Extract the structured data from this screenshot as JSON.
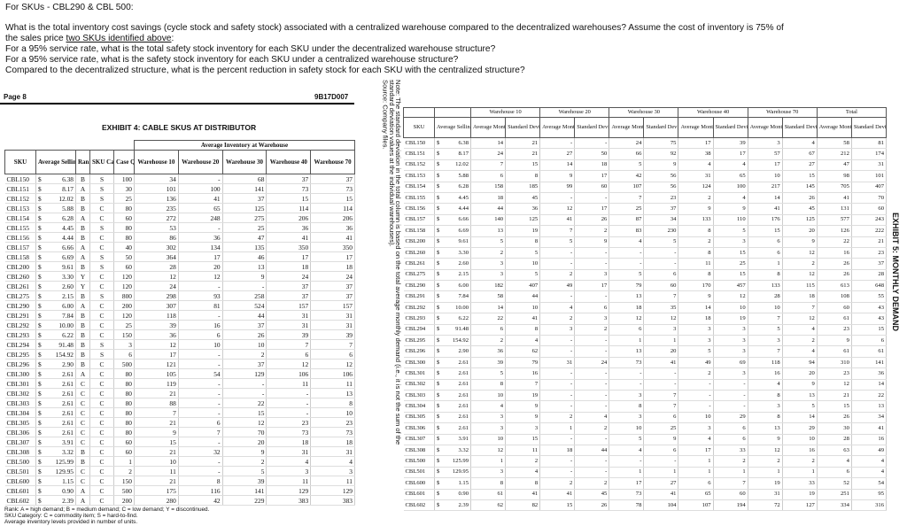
{
  "question": {
    "heading": "For SKUs - CBL290 & CBL 500:",
    "line1": "What is the total inventory cost savings (cycle stock and safety stock) associated with a centralized warehouse compared to the decentralized warehouses? Assume the cost of inventory is 75% of",
    "line2_pre": "the sales price ",
    "line2_u": "two SKUs identified above",
    "line2_post": ":",
    "line3": "For a 95% service rate, what is the total safety stock inventory for each SKU under the decentralized warehouse structure?",
    "line4": "For a 95% service rate, what is the safety stock inventory for each SKU under a centralized warehouse structure?",
    "line5": "Compared to the decentralized structure, what is the percent reduction in safety stock for each SKU with the centralized structure?"
  },
  "page": {
    "label": "Page 8",
    "code": "9B17D007"
  },
  "exhibit4": {
    "title": "EXHIBIT 4: CABLE SKUS AT DISTRIBUTOR",
    "group_header": "Average Inventory at Warehouse",
    "headers": [
      "SKU",
      "Average Selling Price",
      "Rank",
      "SKU Category",
      "Case Quantity",
      "Warehouse 10",
      "Warehouse 20",
      "Warehouse 30",
      "Warehouse 40",
      "Warehouse 70"
    ],
    "rows": [
      [
        "CBL150",
        "6.38",
        "B",
        "S",
        "100",
        "34",
        "-",
        "68",
        "37",
        "37"
      ],
      [
        "CBL151",
        "8.17",
        "A",
        "S",
        "30",
        "101",
        "100",
        "141",
        "73",
        "73"
      ],
      [
        "CBL152",
        "12.02",
        "B",
        "S",
        "25",
        "136",
        "41",
        "37",
        "15",
        "15"
      ],
      [
        "CBL153",
        "5.88",
        "B",
        "C",
        "80",
        "235",
        "65",
        "125",
        "114",
        "114"
      ],
      [
        "CBL154",
        "6.28",
        "A",
        "C",
        "60",
        "272",
        "248",
        "275",
        "206",
        "206"
      ],
      [
        "CBL155",
        "4.45",
        "B",
        "S",
        "80",
        "53",
        "-",
        "25",
        "36",
        "36"
      ],
      [
        "CBL156",
        "4.44",
        "B",
        "C",
        "80",
        "86",
        "36",
        "47",
        "41",
        "41"
      ],
      [
        "CBL157",
        "6.66",
        "A",
        "C",
        "40",
        "302",
        "134",
        "135",
        "350",
        "350"
      ],
      [
        "CBL158",
        "6.69",
        "A",
        "S",
        "50",
        "364",
        "17",
        "46",
        "17",
        "17"
      ],
      [
        "CBL200",
        "9.61",
        "B",
        "S",
        "60",
        "28",
        "20",
        "13",
        "18",
        "18"
      ],
      [
        "CBL260",
        "3.30",
        "Y",
        "C",
        "120",
        "12",
        "12",
        "9",
        "24",
        "24"
      ],
      [
        "CBL261",
        "2.60",
        "Y",
        "C",
        "120",
        "24",
        "-",
        "-",
        "37",
        "37"
      ],
      [
        "CBL275",
        "2.15",
        "B",
        "S",
        "800",
        "298",
        "93",
        "258",
        "37",
        "37"
      ],
      [
        "CBL290",
        "6.00",
        "A",
        "C",
        "200",
        "307",
        "81",
        "524",
        "157",
        "157"
      ],
      [
        "CBL291",
        "7.84",
        "B",
        "C",
        "120",
        "118",
        "-",
        "44",
        "31",
        "31"
      ],
      [
        "CBL292",
        "10.00",
        "B",
        "C",
        "25",
        "39",
        "16",
        "37",
        "31",
        "31"
      ],
      [
        "CBL293",
        "6.22",
        "B",
        "C",
        "150",
        "36",
        "6",
        "26",
        "39",
        "39"
      ],
      [
        "CBL294",
        "91.48",
        "B",
        "S",
        "3",
        "12",
        "10",
        "10",
        "7",
        "7"
      ],
      [
        "CBL295",
        "154.92",
        "B",
        "S",
        "6",
        "17",
        "-",
        "2",
        "6",
        "6"
      ],
      [
        "CBL296",
        "2.90",
        "B",
        "C",
        "500",
        "121",
        "-",
        "37",
        "12",
        "12"
      ],
      [
        "CBL300",
        "2.61",
        "A",
        "C",
        "80",
        "105",
        "54",
        "129",
        "106",
        "106"
      ],
      [
        "CBL301",
        "2.61",
        "C",
        "C",
        "80",
        "119",
        "-",
        "-",
        "11",
        "11"
      ],
      [
        "CBL302",
        "2.61",
        "C",
        "C",
        "80",
        "21",
        "-",
        "-",
        "-",
        "13"
      ],
      [
        "CBL303",
        "2.61",
        "C",
        "C",
        "80",
        "88",
        "-",
        "22",
        "-",
        "8"
      ],
      [
        "CBL304",
        "2.61",
        "C",
        "C",
        "80",
        "7",
        "-",
        "15",
        "-",
        "10"
      ],
      [
        "CBL305",
        "2.61",
        "C",
        "C",
        "80",
        "21",
        "6",
        "12",
        "23",
        "23"
      ],
      [
        "CBL306",
        "2.61",
        "C",
        "C",
        "80",
        "9",
        "7",
        "70",
        "73",
        "73"
      ],
      [
        "CBL307",
        "3.91",
        "C",
        "C",
        "60",
        "15",
        "-",
        "20",
        "18",
        "18"
      ],
      [
        "CBL308",
        "3.32",
        "B",
        "C",
        "60",
        "21",
        "32",
        "9",
        "31",
        "31"
      ],
      [
        "CBL500",
        "125.99",
        "B",
        "C",
        "1",
        "10",
        "-",
        "2",
        "4",
        "4"
      ],
      [
        "CBL501",
        "129.95",
        "C",
        "C",
        "2",
        "11",
        "-",
        "5",
        "3",
        "3"
      ],
      [
        "CBL600",
        "1.15",
        "C",
        "C",
        "150",
        "21",
        "8",
        "39",
        "11",
        "11"
      ],
      [
        "CBL601",
        "0.90",
        "A",
        "C",
        "500",
        "175",
        "116",
        "141",
        "129",
        "129"
      ],
      [
        "CBL602",
        "2.39",
        "A",
        "C",
        "200",
        "280",
        "42",
        "229",
        "383",
        "383"
      ]
    ],
    "footnotes": [
      "Rank: A = high demand; B = medium demand; C = low demand; Y = discontinued.",
      "SKU Category: C = commodity item; S = hard-to-find.",
      "Average inventory levels provided in number of units."
    ]
  },
  "notes": {
    "line1": "Note: The standard deviation in the total column is based on the total average monthly demand (i.e., it is not the sum of the",
    "line2": "standard deviation values at the individual warehouses).",
    "line3": "Source: Company files."
  },
  "exhibit5": {
    "title": "EXHIBIT 5: MONTHLY DEMAND",
    "groups": [
      "Warehouse 10",
      "Warehouse 20",
      "Warehouse 30",
      "Warehouse 40",
      "Warehouse 70",
      "Total"
    ],
    "sku_header": "SKU",
    "price_header": "Average Selling Price",
    "avg_header": "Average Monthly Sales",
    "sd_header": "Standard Deviation",
    "rows": [
      [
        "CBL150",
        "6.38",
        "14",
        "21",
        "-",
        "-",
        "24",
        "75",
        "17",
        "39",
        "3",
        "4",
        "58",
        "81"
      ],
      [
        "CBL151",
        "8.17",
        "24",
        "21",
        "27",
        "50",
        "66",
        "92",
        "38",
        "17",
        "57",
        "67",
        "212",
        "174"
      ],
      [
        "CBL152",
        "12.02",
        "7",
        "15",
        "14",
        "18",
        "5",
        "9",
        "4",
        "4",
        "17",
        "27",
        "47",
        "31"
      ],
      [
        "CBL153",
        "5.88",
        "6",
        "8",
        "9",
        "17",
        "42",
        "56",
        "31",
        "65",
        "10",
        "15",
        "98",
        "101"
      ],
      [
        "CBL154",
        "6.28",
        "158",
        "185",
        "99",
        "60",
        "107",
        "56",
        "124",
        "100",
        "217",
        "145",
        "705",
        "407"
      ],
      [
        "CBL155",
        "4.45",
        "18",
        "45",
        "-",
        "-",
        "7",
        "23",
        "2",
        "4",
        "14",
        "26",
        "41",
        "70"
      ],
      [
        "CBL156",
        "4.44",
        "44",
        "36",
        "12",
        "17",
        "25",
        "37",
        "9",
        "9",
        "41",
        "45",
        "131",
        "60"
      ],
      [
        "CBL157",
        "6.66",
        "140",
        "125",
        "41",
        "26",
        "87",
        "34",
        "133",
        "110",
        "176",
        "125",
        "577",
        "243"
      ],
      [
        "CBL158",
        "6.69",
        "13",
        "19",
        "7",
        "2",
        "83",
        "230",
        "8",
        "5",
        "15",
        "20",
        "126",
        "222"
      ],
      [
        "CBL200",
        "9.61",
        "5",
        "8",
        "5",
        "9",
        "4",
        "5",
        "2",
        "3",
        "6",
        "9",
        "22",
        "21"
      ],
      [
        "CBL260",
        "3.30",
        "2",
        "5",
        "-",
        "-",
        "-",
        "-",
        "8",
        "15",
        "6",
        "12",
        "16",
        "23"
      ],
      [
        "CBL261",
        "2.60",
        "3",
        "10",
        "-",
        "-",
        "-",
        "-",
        "11",
        "25",
        "1",
        "2",
        "26",
        "37"
      ],
      [
        "CBL275",
        "2.15",
        "3",
        "5",
        "2",
        "3",
        "5",
        "6",
        "8",
        "15",
        "8",
        "12",
        "26",
        "28"
      ],
      [
        "CBL290",
        "6.00",
        "182",
        "407",
        "49",
        "17",
        "79",
        "60",
        "170",
        "457",
        "133",
        "115",
        "613",
        "648"
      ],
      [
        "CBL291",
        "7.84",
        "58",
        "44",
        "-",
        "-",
        "13",
        "7",
        "9",
        "12",
        "28",
        "18",
        "108",
        "55"
      ],
      [
        "CBL292",
        "10.00",
        "14",
        "10",
        "4",
        "6",
        "18",
        "35",
        "14",
        "10",
        "10",
        "7",
        "60",
        "43"
      ],
      [
        "CBL293",
        "6.22",
        "22",
        "41",
        "2",
        "3",
        "12",
        "12",
        "18",
        "19",
        "7",
        "12",
        "61",
        "43"
      ],
      [
        "CBL294",
        "91.48",
        "6",
        "8",
        "3",
        "2",
        "6",
        "3",
        "3",
        "3",
        "5",
        "4",
        "23",
        "15"
      ],
      [
        "CBL295",
        "154.92",
        "2",
        "4",
        "-",
        "-",
        "1",
        "1",
        "3",
        "3",
        "3",
        "2",
        "9",
        "6"
      ],
      [
        "CBL296",
        "2.90",
        "36",
        "62",
        "-",
        "-",
        "13",
        "20",
        "5",
        "3",
        "7",
        "4",
        "61",
        "61"
      ],
      [
        "CBL300",
        "2.61",
        "39",
        "79",
        "31",
        "24",
        "73",
        "41",
        "49",
        "69",
        "118",
        "94",
        "310",
        "141"
      ],
      [
        "CBL301",
        "2.61",
        "5",
        "16",
        "-",
        "-",
        "-",
        "-",
        "2",
        "3",
        "16",
        "20",
        "23",
        "36"
      ],
      [
        "CBL302",
        "2.61",
        "8",
        "7",
        "-",
        "-",
        "-",
        "-",
        "-",
        "-",
        "4",
        "9",
        "12",
        "14"
      ],
      [
        "CBL303",
        "2.61",
        "10",
        "19",
        "-",
        "-",
        "3",
        "7",
        "-",
        "-",
        "8",
        "13",
        "21",
        "22"
      ],
      [
        "CBL304",
        "2.61",
        "4",
        "9",
        "-",
        "-",
        "8",
        "7",
        "-",
        "-",
        "3",
        "5",
        "15",
        "13"
      ],
      [
        "CBL305",
        "2.61",
        "3",
        "9",
        "2",
        "4",
        "3",
        "6",
        "10",
        "29",
        "8",
        "14",
        "26",
        "34"
      ],
      [
        "CBL306",
        "2.61",
        "3",
        "3",
        "1",
        "2",
        "10",
        "25",
        "3",
        "6",
        "13",
        "29",
        "30",
        "41"
      ],
      [
        "CBL307",
        "3.91",
        "10",
        "15",
        "-",
        "-",
        "5",
        "9",
        "4",
        "6",
        "9",
        "10",
        "28",
        "16"
      ],
      [
        "CBL308",
        "3.32",
        "12",
        "11",
        "18",
        "44",
        "4",
        "6",
        "17",
        "33",
        "12",
        "16",
        "63",
        "49"
      ],
      [
        "CBL500",
        "125.99",
        "1",
        "2",
        "-",
        "-",
        "-",
        "-",
        "1",
        "2",
        "2",
        "2",
        "4",
        "4"
      ],
      [
        "CBL501",
        "129.95",
        "3",
        "4",
        "-",
        "-",
        "1",
        "1",
        "1",
        "1",
        "1",
        "1",
        "6",
        "4"
      ],
      [
        "CBL600",
        "1.15",
        "8",
        "8",
        "2",
        "2",
        "17",
        "27",
        "6",
        "7",
        "19",
        "33",
        "52",
        "54"
      ],
      [
        "CBL601",
        "0.90",
        "61",
        "41",
        "41",
        "45",
        "73",
        "41",
        "65",
        "60",
        "31",
        "19",
        "251",
        "95"
      ],
      [
        "CBL602",
        "2.39",
        "62",
        "82",
        "15",
        "26",
        "78",
        "104",
        "107",
        "194",
        "72",
        "127",
        "334",
        "316"
      ]
    ]
  }
}
